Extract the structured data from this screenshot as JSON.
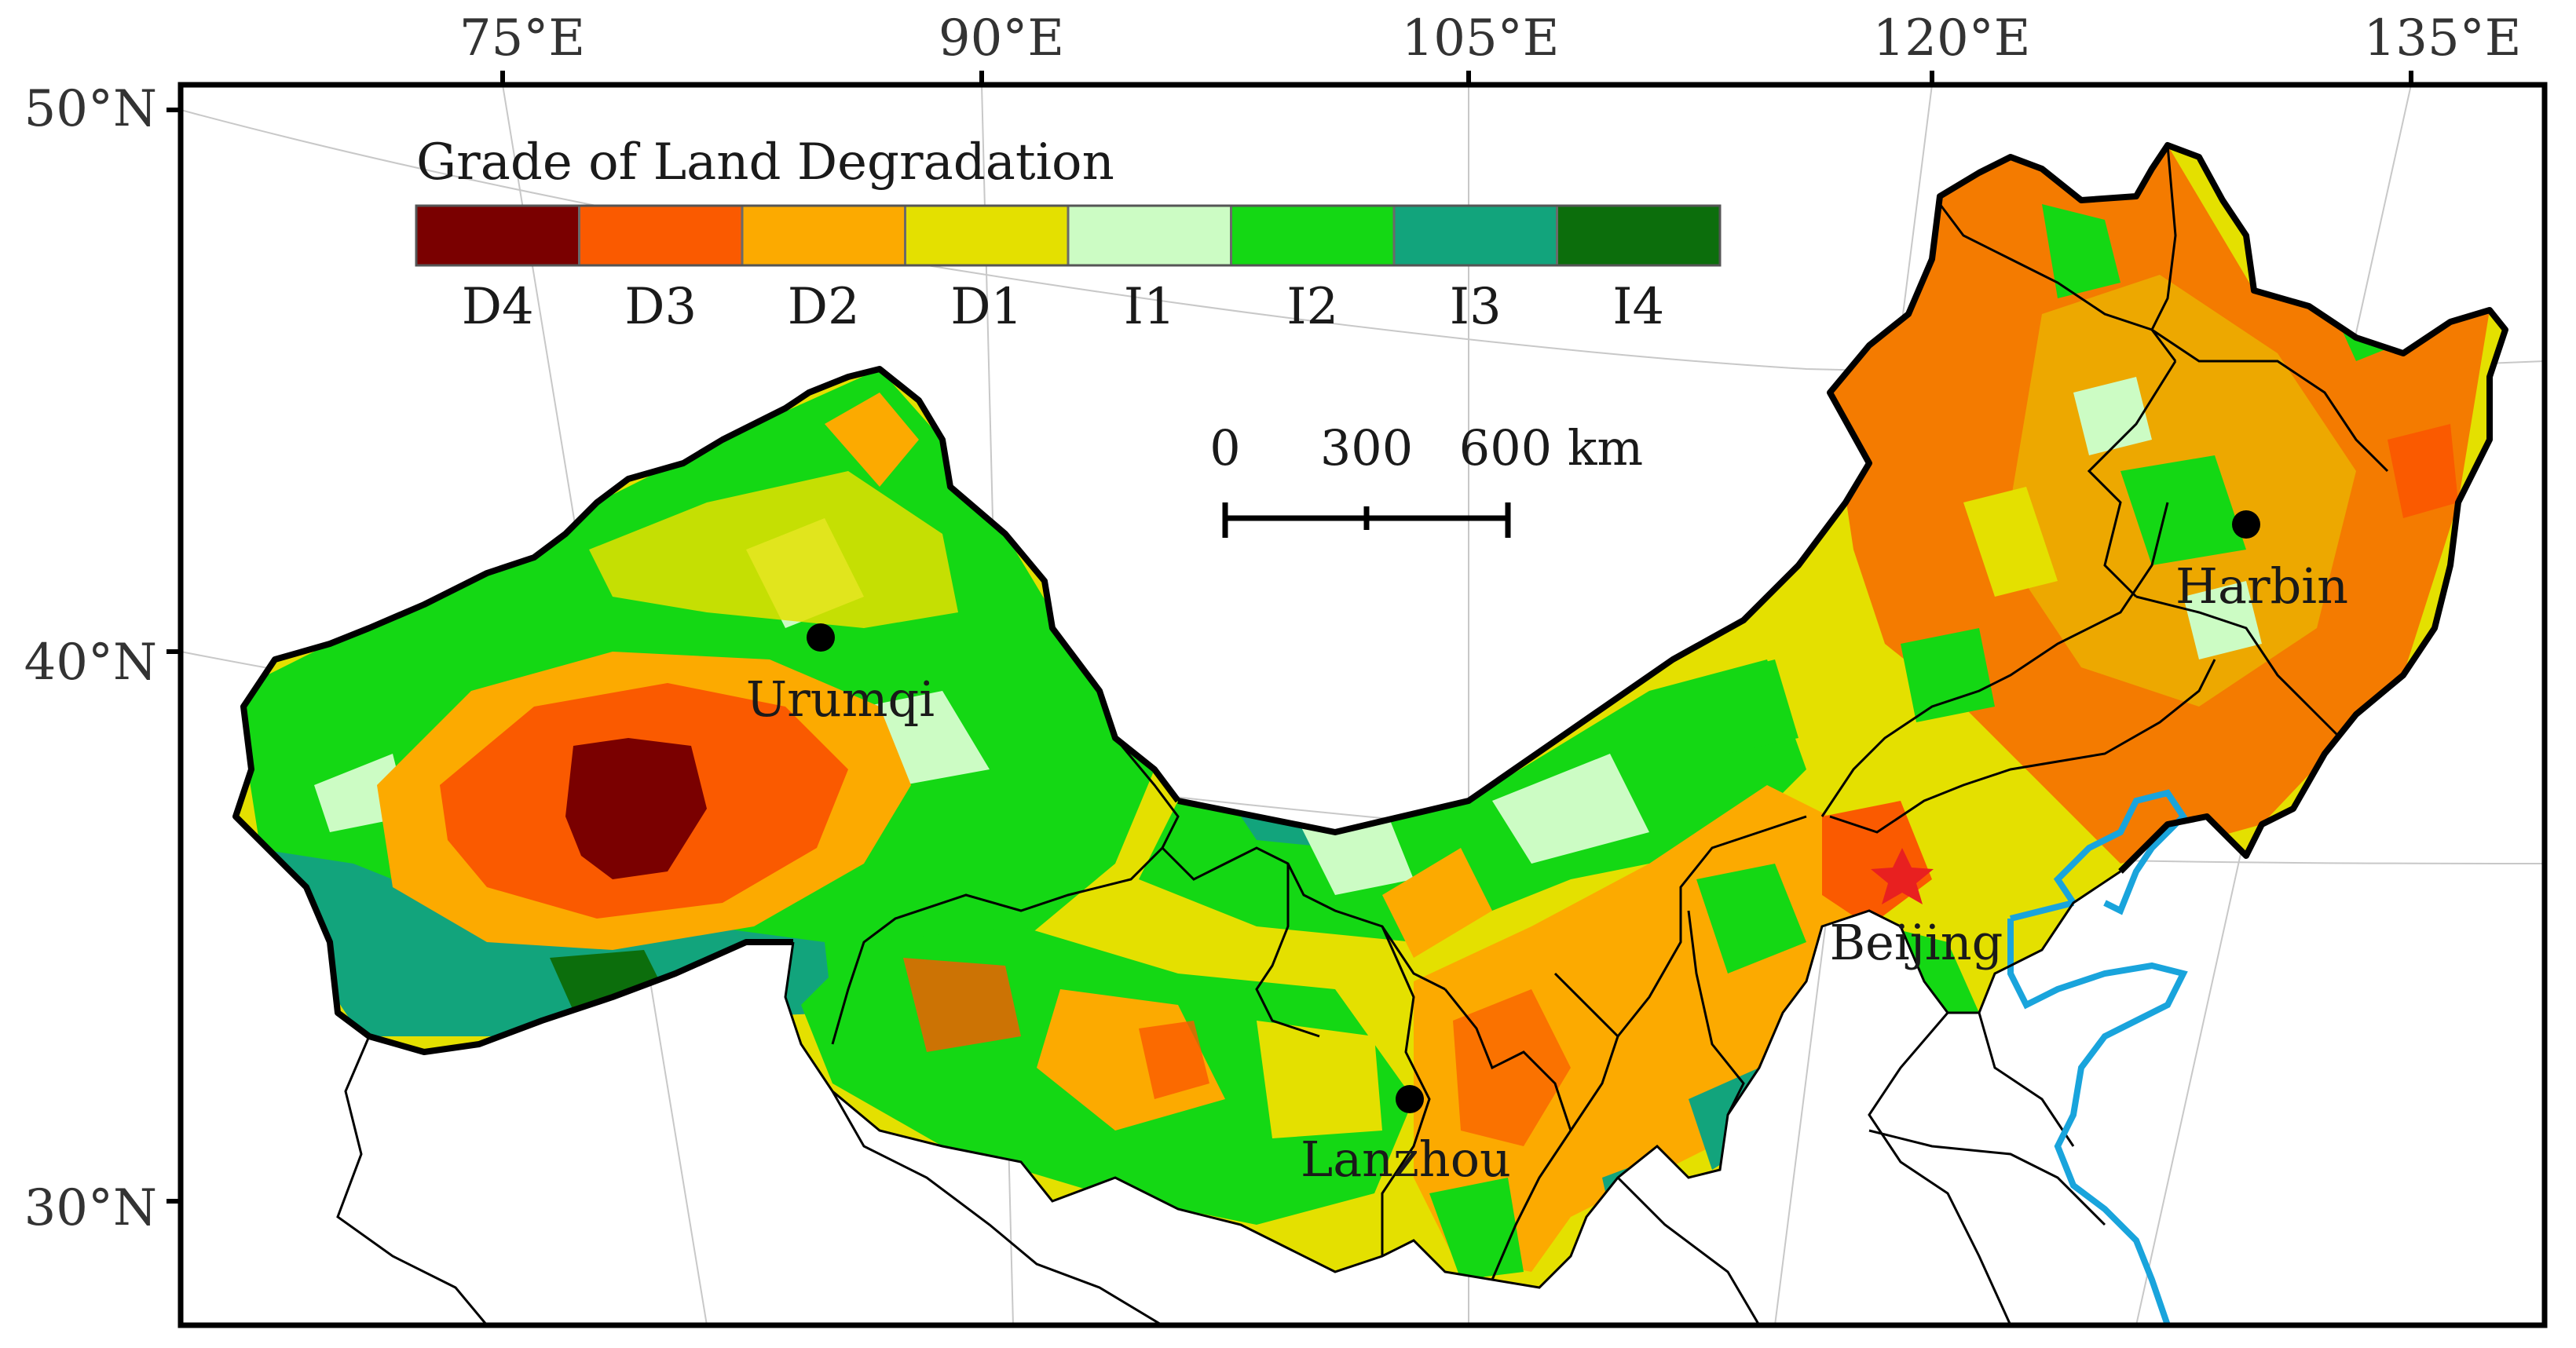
{
  "map": {
    "longitude_labels": [
      "75°E",
      "90°E",
      "105°E",
      "120°E",
      "135°E"
    ],
    "latitude_labels": [
      "50°N",
      "40°N",
      "30°N"
    ],
    "legend": {
      "title": "Grade of Land Degradation",
      "classes": [
        {
          "code": "D4",
          "color": "#7a0000"
        },
        {
          "code": "D3",
          "color": "#fa5a00"
        },
        {
          "code": "D2",
          "color": "#fcaa00"
        },
        {
          "code": "D1",
          "color": "#e4e000"
        },
        {
          "code": "I1",
          "color": "#ccfcc4"
        },
        {
          "code": "I2",
          "color": "#14d814"
        },
        {
          "code": "I3",
          "color": "#12a47c"
        },
        {
          "code": "I4",
          "color": "#0c6e0c"
        }
      ]
    },
    "scale_bar": {
      "labels": [
        "0",
        "300",
        "600 km"
      ]
    },
    "cities": [
      {
        "name": "Urumqi",
        "marker": "dot"
      },
      {
        "name": "Harbin",
        "marker": "dot"
      },
      {
        "name": "Lanzhou",
        "marker": "dot"
      },
      {
        "name": "Beijing",
        "marker": "star-icon"
      }
    ],
    "colors": {
      "coastline": "#19a4dc",
      "capital_star": "#e82020",
      "border": "#000000"
    }
  }
}
